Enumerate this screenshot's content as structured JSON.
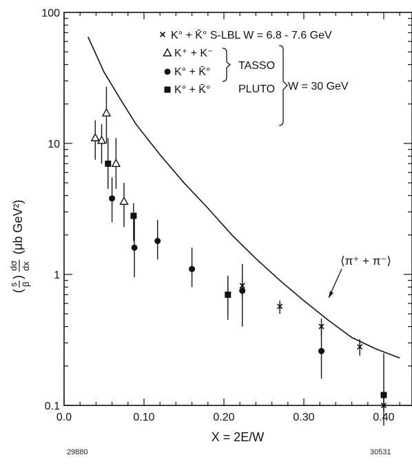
{
  "chart_data": {
    "type": "scatter",
    "xlabel": "X = 2E/W",
    "ylabel": "(s/β) dσ/dx (μb GeV²)",
    "xlim": [
      0.0,
      0.42
    ],
    "ylim": [
      0.1,
      100
    ],
    "y_scale": "log",
    "grid": false,
    "legend_position": "top-right",
    "x_ticks": [
      "0.0",
      "0.10",
      "0.20",
      "0.30",
      "0.40"
    ],
    "y_ticks": [
      "0.1",
      "1",
      "10",
      "100"
    ],
    "legend": {
      "slbl": "K° + K̄° S-LBL W = 6.8 - 7.6 GeV",
      "kpm": "K⁺ + K⁻",
      "k0_tasso": "K° + K̄°",
      "k0_pluto": "K° + K̄°",
      "tasso": "TASSO",
      "pluto": "PLUTO",
      "w30": "W = 30 GeV"
    },
    "curve_label": "⟨π⁺ + π⁻⟩",
    "series": [
      {
        "marker": "cross",
        "points": [
          [
            0.205,
            0.7,
            0.55,
            0.9
          ],
          [
            0.223,
            0.82,
            0.68,
            0.95
          ],
          [
            0.27,
            0.57,
            0.5,
            0.63
          ],
          [
            0.322,
            0.4,
            0.34,
            0.46
          ],
          [
            0.37,
            0.28,
            0.24,
            0.32
          ],
          [
            0.4,
            0.1,
            0.09,
            0.12
          ]
        ]
      },
      {
        "marker": "open-triangle",
        "points": [
          [
            0.039,
            11,
            7.5,
            15
          ],
          [
            0.047,
            10.5,
            7,
            14
          ],
          [
            0.053,
            17,
            10,
            27
          ],
          [
            0.065,
            7,
            4.5,
            11
          ],
          [
            0.075,
            3.6,
            2.3,
            5
          ]
        ]
      },
      {
        "marker": "filled-circle",
        "points": [
          [
            0.06,
            3.8,
            2.5,
            5.5
          ],
          [
            0.088,
            1.6,
            0.95,
            2.8
          ],
          [
            0.117,
            1.8,
            1.3,
            2.6
          ],
          [
            0.16,
            1.1,
            0.8,
            1.6
          ],
          [
            0.223,
            0.75,
            0.4,
            1.2
          ],
          [
            0.322,
            0.26,
            0.16,
            0.42
          ]
        ]
      },
      {
        "marker": "filled-square",
        "points": [
          [
            0.055,
            7,
            4.5,
            11
          ],
          [
            0.087,
            2.8,
            1.8,
            3.5
          ],
          [
            0.205,
            0.7,
            0.45,
            0.98
          ],
          [
            0.4,
            0.12,
            0.07,
            0.25
          ]
        ]
      }
    ],
    "curve": [
      [
        0.03,
        65
      ],
      [
        0.05,
        35
      ],
      [
        0.07,
        22
      ],
      [
        0.09,
        14
      ],
      [
        0.12,
        8.2
      ],
      [
        0.15,
        5
      ],
      [
        0.18,
        3.2
      ],
      [
        0.21,
        2
      ],
      [
        0.24,
        1.32
      ],
      [
        0.27,
        0.9
      ],
      [
        0.3,
        0.63
      ],
      [
        0.33,
        0.45
      ],
      [
        0.36,
        0.33
      ],
      [
        0.39,
        0.27
      ],
      [
        0.42,
        0.23
      ]
    ]
  },
  "footer": {
    "left_code": "29880",
    "right_code": "30531"
  }
}
